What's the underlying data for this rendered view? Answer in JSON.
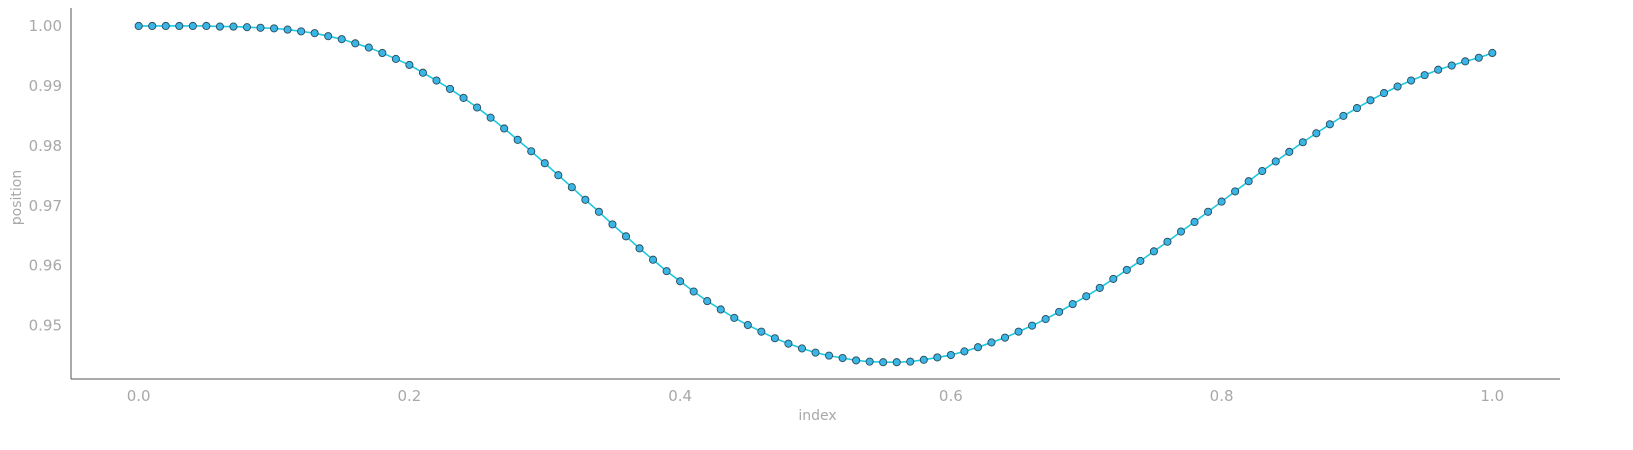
{
  "chart_data": {
    "type": "line",
    "title": "",
    "xlabel": "index",
    "ylabel": "position",
    "xlim": [
      -0.05,
      1.05
    ],
    "ylim": [
      0.9411,
      1.003
    ],
    "xticks": [
      0.0,
      0.2,
      0.4,
      0.6,
      0.8,
      1.0
    ],
    "xtick_labels": [
      "0.0",
      "0.2",
      "0.4",
      "0.6",
      "0.8",
      "1.0"
    ],
    "yticks": [
      0.95,
      0.96,
      0.97,
      0.98,
      0.99,
      1.0
    ],
    "ytick_labels": [
      "0.95",
      "0.96",
      "0.97",
      "0.98",
      "0.99",
      "1.00"
    ],
    "grid": false,
    "legend": "none",
    "colors": {
      "line": "#1ec8e0",
      "marker_fill": "#39b6e6",
      "marker_edge": "#2a4a5a",
      "axis": "#555555",
      "text": "#a8a8a8"
    },
    "series": [
      {
        "x": [
          0.0,
          0.01,
          0.02,
          0.03,
          0.04,
          0.05,
          0.06,
          0.07,
          0.08,
          0.09,
          0.1,
          0.11,
          0.12,
          0.13,
          0.14,
          0.15,
          0.16,
          0.17,
          0.18,
          0.19,
          0.2,
          0.21,
          0.22,
          0.23,
          0.24,
          0.25,
          0.26,
          0.27,
          0.28,
          0.29,
          0.3,
          0.31,
          0.32,
          0.33,
          0.34,
          0.35,
          0.36,
          0.37,
          0.38,
          0.39,
          0.4,
          0.41,
          0.42,
          0.43,
          0.44,
          0.45,
          0.46,
          0.47,
          0.48,
          0.49,
          0.5,
          0.51,
          0.52,
          0.53,
          0.54,
          0.55,
          0.56,
          0.57,
          0.58,
          0.59,
          0.6,
          0.61,
          0.62,
          0.63,
          0.64,
          0.65,
          0.66,
          0.67,
          0.68,
          0.69,
          0.7,
          0.71,
          0.72,
          0.73,
          0.74,
          0.75,
          0.76,
          0.77,
          0.78,
          0.79,
          0.8,
          0.81,
          0.82,
          0.83,
          0.84,
          0.85,
          0.86,
          0.87,
          0.88,
          0.89,
          0.9,
          0.91,
          0.92,
          0.93,
          0.94,
          0.95,
          0.96,
          0.97,
          0.98,
          0.99,
          1.0
        ],
        "y": [
          1.0,
          1.0,
          1.0,
          1.0,
          1.0,
          1.0,
          0.9999,
          0.9999,
          0.9998,
          0.9997,
          0.9996,
          0.9994,
          0.9991,
          0.9988,
          0.9983,
          0.9978,
          0.9971,
          0.9964,
          0.9955,
          0.9945,
          0.9935,
          0.9922,
          0.9909,
          0.9895,
          0.988,
          0.9864,
          0.9847,
          0.9829,
          0.981,
          0.9791,
          0.9771,
          0.9751,
          0.9731,
          0.971,
          0.969,
          0.9669,
          0.9649,
          0.9629,
          0.961,
          0.9591,
          0.9574,
          0.9557,
          0.9541,
          0.9527,
          0.9513,
          0.9501,
          0.949,
          0.9479,
          0.947,
          0.9462,
          0.9455,
          0.945,
          0.9446,
          0.9442,
          0.944,
          0.9439,
          0.9439,
          0.944,
          0.9443,
          0.9447,
          0.9451,
          0.9457,
          0.9464,
          0.9472,
          0.948,
          0.949,
          0.95,
          0.9511,
          0.9523,
          0.9536,
          0.9549,
          0.9563,
          0.9578,
          0.9593,
          0.9608,
          0.9624,
          0.964,
          0.9657,
          0.9673,
          0.969,
          0.9707,
          0.9724,
          0.9741,
          0.9758,
          0.9774,
          0.979,
          0.9806,
          0.9821,
          0.9836,
          0.985,
          0.9863,
          0.9876,
          0.9888,
          0.9899,
          0.9909,
          0.9918,
          0.9927,
          0.9934,
          0.9941,
          0.9947,
          0.9955
        ]
      }
    ]
  }
}
